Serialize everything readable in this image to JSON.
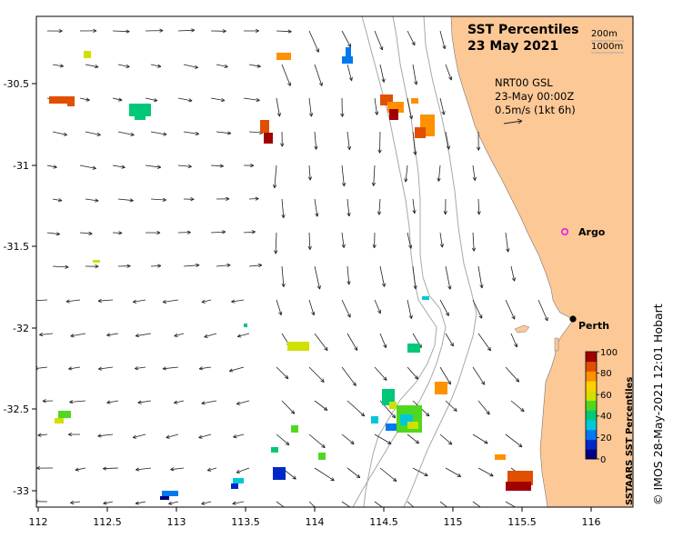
{
  "title": {
    "line1": "SST Percentiles",
    "line2": "23 May 2021"
  },
  "isobaths": {
    "label_200": "200m",
    "label_1000": "1000m"
  },
  "current_info": {
    "line1": "NRT00 GSL",
    "line2": "23-May 00:00Z",
    "line3": "0.5m/s (1kt 6h)"
  },
  "places": {
    "argo": "Argo",
    "perth": "Perth"
  },
  "colorbar": {
    "title": "SSTAARS SST Percentiles",
    "ticks": [
      "100",
      "80",
      "60",
      "40",
      "20",
      "0"
    ],
    "colors": [
      "#000080",
      "#0028c8",
      "#0078f0",
      "#00c8d8",
      "#00c878",
      "#50d820",
      "#d0e000",
      "#ffd000",
      "#ff9000",
      "#e05000",
      "#a00000"
    ]
  },
  "axes": {
    "x_ticks": [
      "112",
      "112.5",
      "113",
      "113.5",
      "114",
      "114.5",
      "115",
      "115.5",
      "116"
    ],
    "y_ticks": [
      "-30.5",
      "-31",
      "-31.5",
      "-32",
      "-32.5",
      "-33"
    ]
  },
  "colors": {
    "land": "#fcc896",
    "isobath": "#a8a8a8",
    "arrow": "#202020",
    "argo": "#e020e0"
  },
  "credit": "© IMOS 28-May-2021 12:01 Hobart"
}
